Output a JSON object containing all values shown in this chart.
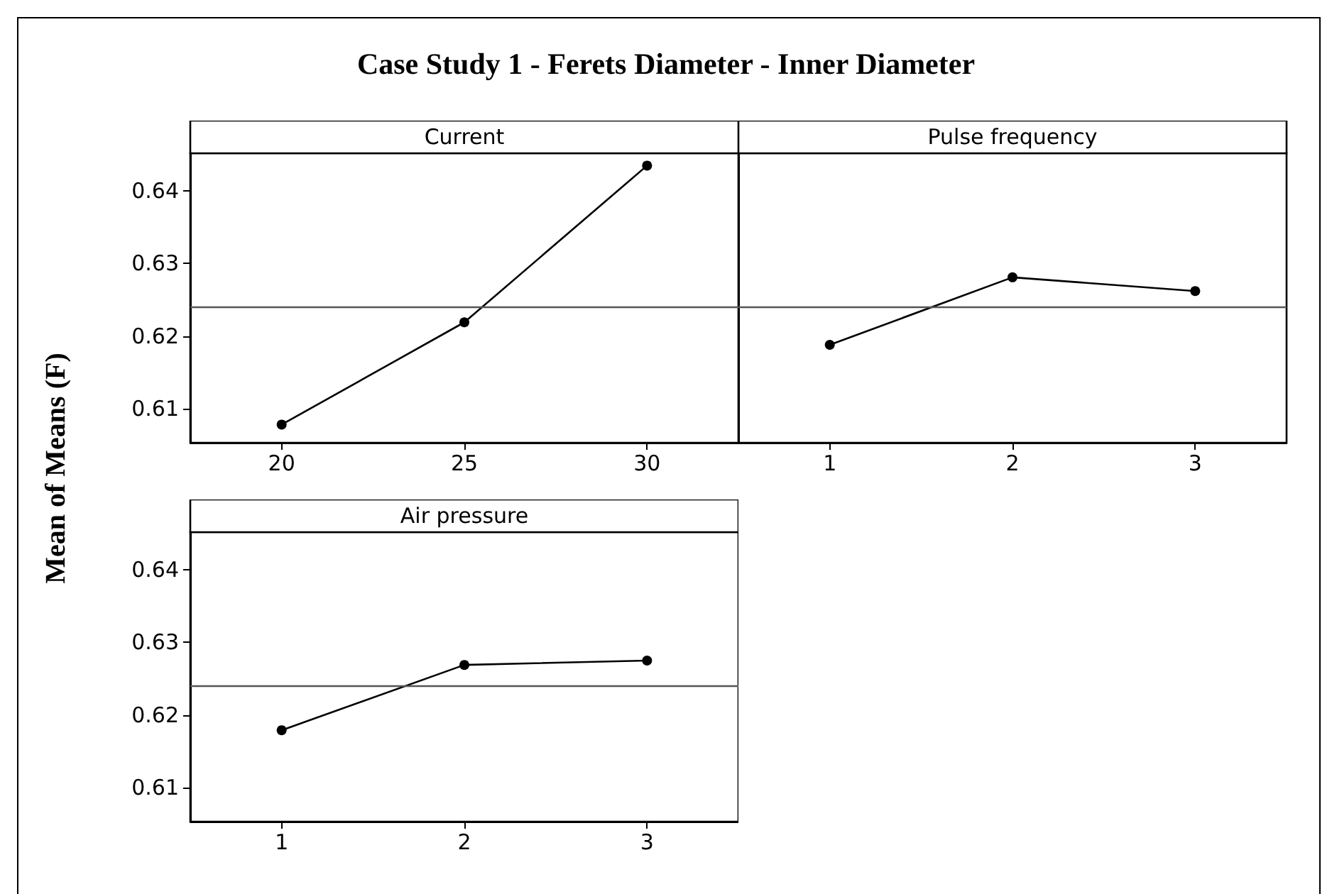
{
  "chart_data": [
    {
      "type": "line",
      "title": "Current",
      "ylabel": "Mean of Means (F)",
      "annotations": [
        "Case Study 1 - Ferets Diameter - Inner Diameter"
      ],
      "categories": [
        "20",
        "25",
        "30"
      ],
      "values": [
        0.6078,
        0.6219,
        0.6435
      ],
      "color": "#000000",
      "ylim": [
        0.6053,
        0.6452
      ],
      "yticks": [
        0.61,
        0.62,
        0.63,
        0.64
      ],
      "ref_lines": [
        {
          "axis": "y",
          "value": 0.624,
          "color": "#555555"
        }
      ],
      "marker": "circle",
      "line_style": "solid",
      "grid": false
    },
    {
      "type": "line",
      "title": "Pulse frequency",
      "categories": [
        "1",
        "2",
        "3"
      ],
      "values": [
        0.6188,
        0.6281,
        0.6262
      ],
      "color": "#000000",
      "ylim": [
        0.6053,
        0.6452
      ],
      "yticks": [
        0.61,
        0.62,
        0.63,
        0.64
      ],
      "tick_labels": "x",
      "ref_lines": [
        {
          "axis": "y",
          "value": 0.624,
          "color": "#555555"
        }
      ],
      "marker": "circle",
      "line_style": "solid",
      "grid": false
    },
    {
      "type": "line",
      "title": "Air pressure",
      "categories": [
        "1",
        "2",
        "3"
      ],
      "values": [
        0.6179,
        0.6269,
        0.6275
      ],
      "color": "#000000",
      "ylim": [
        0.6053,
        0.6452
      ],
      "yticks": [
        0.61,
        0.62,
        0.63,
        0.64
      ],
      "ref_lines": [
        {
          "axis": "y",
          "value": 0.624,
          "color": "#555555"
        }
      ],
      "marker": "circle",
      "line_style": "solid",
      "grid": false
    }
  ]
}
